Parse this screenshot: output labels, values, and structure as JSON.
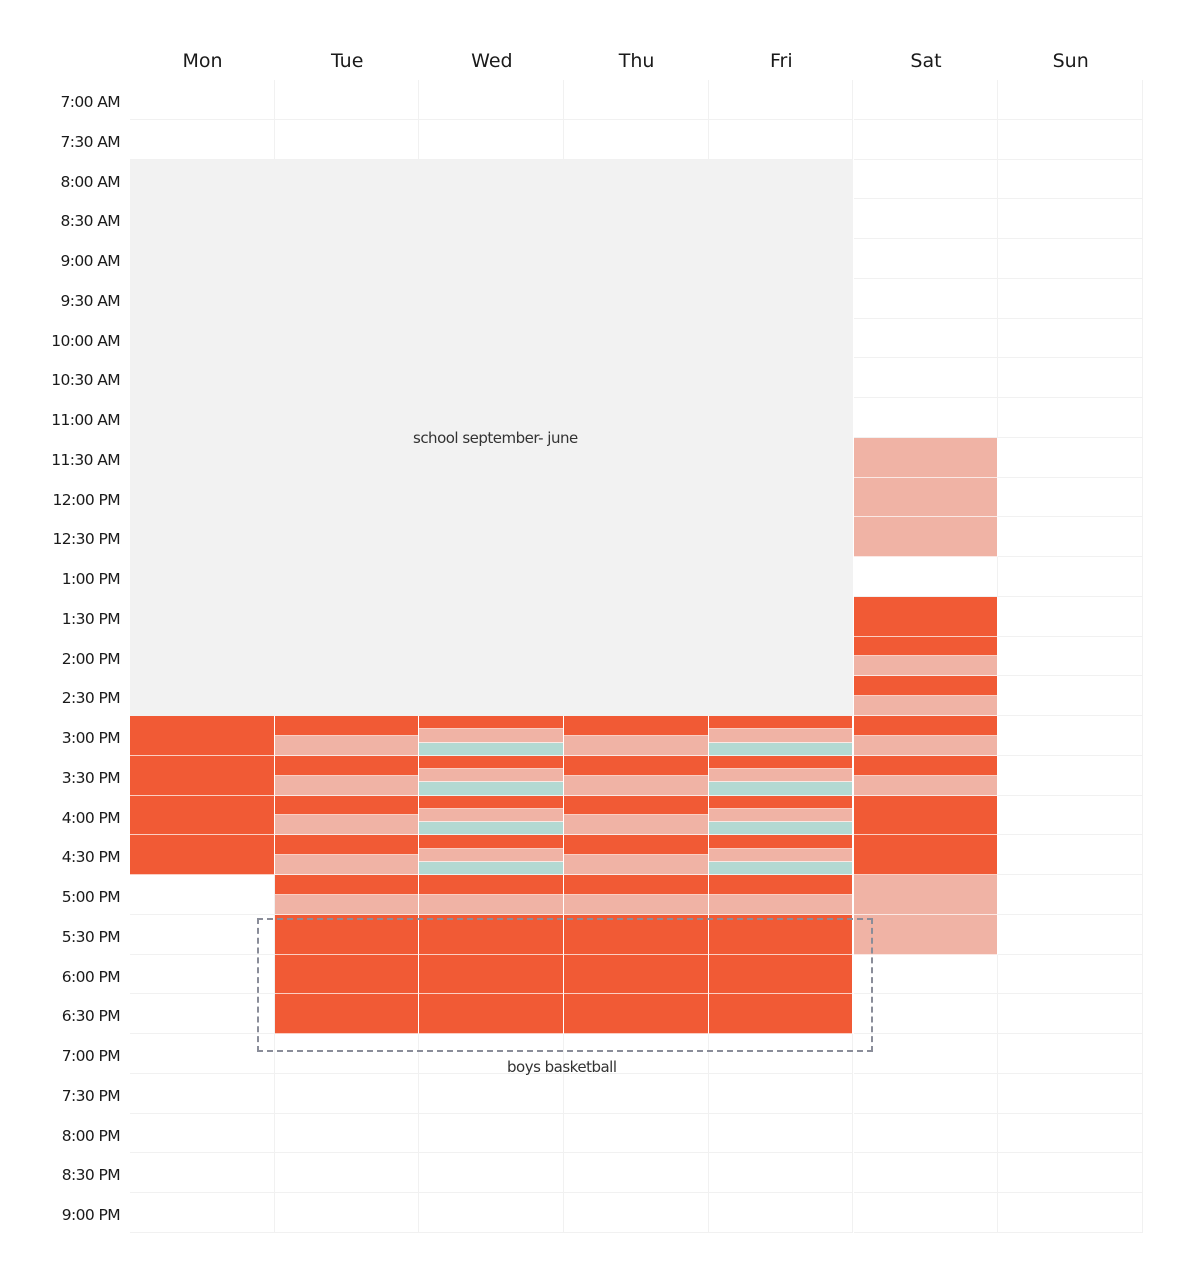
{
  "days": [
    "Mon",
    "Tue",
    "Wed",
    "Thu",
    "Fri",
    "Sat",
    "Sun"
  ],
  "times": [
    "7:00 AM",
    "7:30 AM",
    "8:00 AM",
    "8:30 AM",
    "9:00 AM",
    "9:30 AM",
    "10:00 AM",
    "10:30 AM",
    "11:00 AM",
    "11:30 AM",
    "12:00 PM",
    "12:30 PM",
    "1:00 PM",
    "1:30 PM",
    "2:00 PM",
    "2:30 PM",
    "3:00 PM",
    "3:30 PM",
    "4:00 PM",
    "4:30 PM",
    "5:00 PM",
    "5:30 PM",
    "6:00 PM",
    "6:30 PM",
    "7:00 PM",
    "7:30 PM",
    "8:00 PM",
    "8:30 PM",
    "9:00 PM"
  ],
  "colors": {
    "red": "#f15a35",
    "pink": "#f0b3a5",
    "teal": "#b3d9d2",
    "gray": "#f2f2f2"
  },
  "school": {
    "label": "school september- june",
    "days": [
      "Mon",
      "Tue",
      "Wed",
      "Thu",
      "Fri"
    ],
    "from": "8:00 AM",
    "to": "2:30 PM"
  },
  "basketball": {
    "label": "boys basketball"
  },
  "events": {
    "Mon": {
      "3:00 PM": [
        "red"
      ],
      "3:30 PM": [
        "red"
      ],
      "4:00 PM": [
        "red"
      ],
      "4:30 PM": [
        "red"
      ]
    },
    "Tue": {
      "3:00 PM": [
        "red",
        "pink"
      ],
      "3:30 PM": [
        "red",
        "pink"
      ],
      "4:00 PM": [
        "red",
        "pink"
      ],
      "4:30 PM": [
        "red",
        "pink"
      ],
      "5:00 PM": [
        "red",
        "pink"
      ],
      "5:30 PM": [
        "red"
      ],
      "6:00 PM": [
        "red"
      ],
      "6:30 PM": [
        "red"
      ]
    },
    "Wed": {
      "3:00 PM": [
        "red",
        "pink",
        "teal"
      ],
      "3:30 PM": [
        "red",
        "pink",
        "teal"
      ],
      "4:00 PM": [
        "red",
        "pink",
        "teal"
      ],
      "4:30 PM": [
        "red",
        "pink",
        "teal"
      ],
      "5:00 PM": [
        "red",
        "pink"
      ],
      "5:30 PM": [
        "red"
      ],
      "6:00 PM": [
        "red"
      ],
      "6:30 PM": [
        "red"
      ]
    },
    "Thu": {
      "3:00 PM": [
        "red",
        "pink"
      ],
      "3:30 PM": [
        "red",
        "pink"
      ],
      "4:00 PM": [
        "red",
        "pink"
      ],
      "4:30 PM": [
        "red",
        "pink"
      ],
      "5:00 PM": [
        "red",
        "pink"
      ],
      "5:30 PM": [
        "red"
      ],
      "6:00 PM": [
        "red"
      ],
      "6:30 PM": [
        "red"
      ]
    },
    "Fri": {
      "3:00 PM": [
        "red",
        "pink",
        "teal"
      ],
      "3:30 PM": [
        "red",
        "pink",
        "teal"
      ],
      "4:00 PM": [
        "red",
        "pink",
        "teal"
      ],
      "4:30 PM": [
        "red",
        "pink",
        "teal"
      ],
      "5:00 PM": [
        "red",
        "pink"
      ],
      "5:30 PM": [
        "red"
      ],
      "6:00 PM": [
        "red"
      ],
      "6:30 PM": [
        "red"
      ]
    },
    "Sat": {
      "11:30 AM": [
        "pink"
      ],
      "12:00 PM": [
        "pink"
      ],
      "12:30 PM": [
        "pink"
      ],
      "1:30 PM": [
        "red"
      ],
      "2:00 PM": [
        "red",
        "pink"
      ],
      "2:30 PM": [
        "red",
        "pink"
      ],
      "3:00 PM": [
        "red",
        "pink"
      ],
      "3:30 PM": [
        "red",
        "pink"
      ],
      "4:00 PM": [
        "red"
      ],
      "4:30 PM": [
        "red"
      ],
      "5:00 PM": [
        "pink"
      ],
      "5:30 PM": [
        "pink"
      ]
    },
    "Sun": {}
  }
}
